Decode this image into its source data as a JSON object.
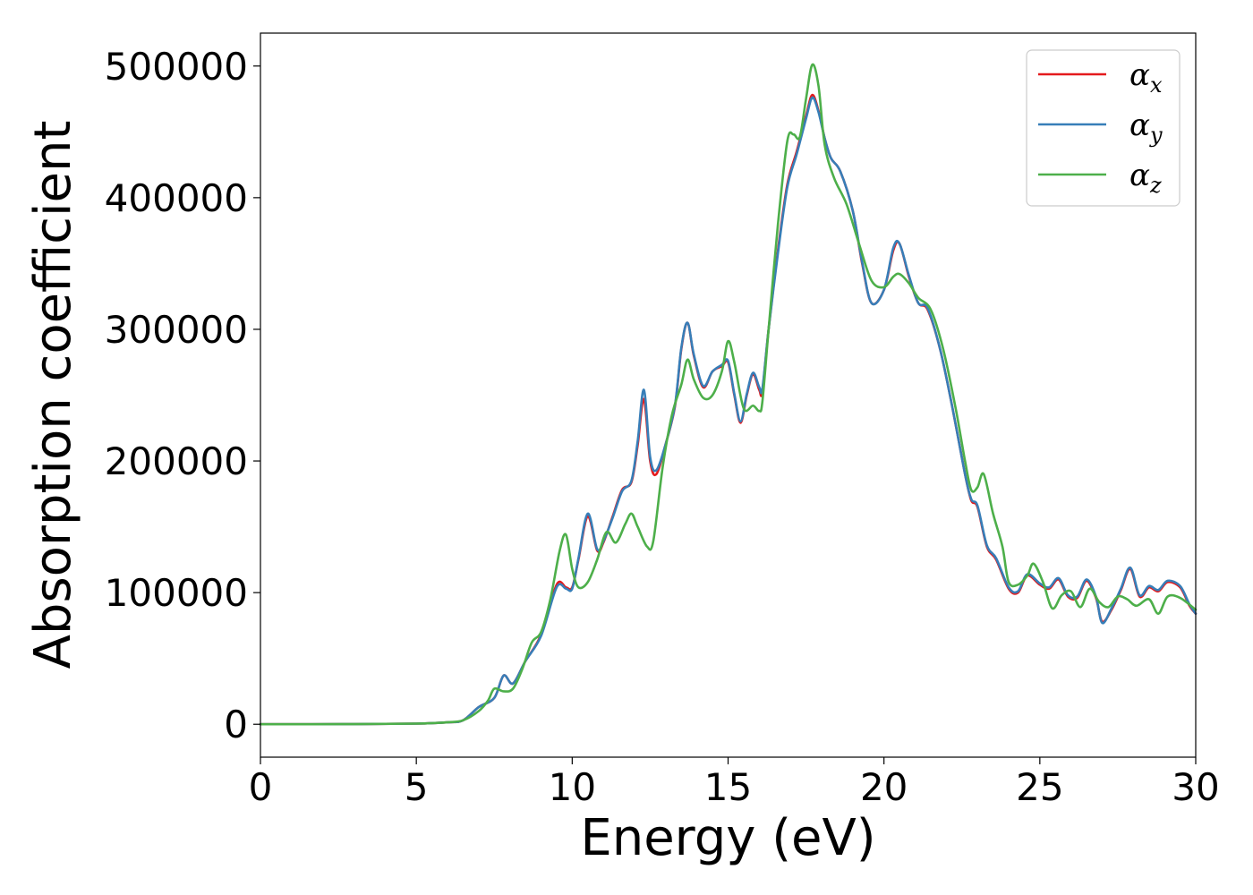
{
  "chart_data": {
    "type": "line",
    "title": "",
    "xlabel": "Energy (eV)",
    "ylabel": "Absorption coefficient",
    "xlim": [
      0,
      30
    ],
    "ylim": [
      -25000,
      525000
    ],
    "xticks": [
      0,
      5,
      10,
      15,
      20,
      25,
      30
    ],
    "yticks": [
      0,
      100000,
      200000,
      300000,
      400000,
      500000
    ],
    "grid": false,
    "legend_position": "top-right",
    "series": [
      {
        "name": "αx",
        "legend_symbol": "α",
        "legend_subscript": "x",
        "color": "#e41a1c",
        "x": [
          0,
          3,
          5,
          6,
          6.5,
          7,
          7.5,
          7.8,
          8.1,
          8.5,
          9,
          9.5,
          9.8,
          10,
          10.2,
          10.5,
          10.8,
          11,
          11.3,
          11.6,
          11.9,
          12.1,
          12.3,
          12.5,
          12.7,
          13,
          13.3,
          13.5,
          13.7,
          13.9,
          14.2,
          14.5,
          14.8,
          15,
          15.2,
          15.4,
          15.6,
          15.8,
          16,
          16.1,
          16.3,
          16.6,
          16.9,
          17.2,
          17.5,
          17.7,
          17.9,
          18.1,
          18.3,
          18.6,
          19,
          19.3,
          19.6,
          20,
          20.3,
          20.5,
          20.8,
          21.1,
          21.4,
          21.8,
          22.2,
          22.6,
          22.8,
          23,
          23.3,
          23.6,
          24,
          24.3,
          24.6,
          25,
          25.3,
          25.6,
          25.9,
          26.2,
          26.5,
          26.8,
          27,
          27.3,
          27.6,
          27.9,
          28.2,
          28.5,
          28.8,
          29.1,
          29.5,
          29.8,
          30
        ],
        "y": [
          0,
          100,
          500,
          1500,
          3000,
          13000,
          20000,
          37000,
          31000,
          48000,
          68000,
          106000,
          104000,
          104000,
          125000,
          158000,
          132000,
          138000,
          158000,
          178000,
          184000,
          212000,
          247000,
          200000,
          190000,
          213000,
          242000,
          285000,
          305000,
          280000,
          256000,
          268000,
          272000,
          275000,
          250000,
          229000,
          250000,
          266000,
          254000,
          253000,
          300000,
          360000,
          410000,
          435000,
          462000,
          478000,
          466000,
          445000,
          430000,
          420000,
          390000,
          350000,
          320000,
          330000,
          360000,
          365000,
          340000,
          320000,
          315000,
          285000,
          240000,
          190000,
          170000,
          165000,
          135000,
          125000,
          103000,
          100000,
          113000,
          106000,
          103000,
          110000,
          97000,
          96000,
          109000,
          96000,
          78000,
          87000,
          102000,
          118000,
          97000,
          104000,
          101000,
          108000,
          104000,
          90000,
          84000
        ]
      },
      {
        "name": "αy",
        "legend_symbol": "α",
        "legend_subscript": "y",
        "color": "#377eb8",
        "x": [
          0,
          3,
          5,
          6,
          6.5,
          7,
          7.5,
          7.8,
          8.1,
          8.5,
          9,
          9.5,
          9.8,
          10,
          10.2,
          10.5,
          10.8,
          11,
          11.3,
          11.6,
          11.9,
          12.1,
          12.3,
          12.5,
          12.7,
          13,
          13.3,
          13.5,
          13.7,
          13.9,
          14.2,
          14.5,
          14.8,
          15,
          15.2,
          15.4,
          15.6,
          15.8,
          16,
          16.1,
          16.3,
          16.6,
          16.9,
          17.2,
          17.5,
          17.7,
          17.9,
          18.1,
          18.3,
          18.6,
          19,
          19.3,
          19.6,
          20,
          20.3,
          20.5,
          20.8,
          21.1,
          21.4,
          21.8,
          22.2,
          22.6,
          22.8,
          23,
          23.3,
          23.6,
          24,
          24.3,
          24.6,
          25,
          25.3,
          25.6,
          25.9,
          26.2,
          26.5,
          26.8,
          27,
          27.3,
          27.6,
          27.9,
          28.2,
          28.5,
          28.8,
          29.1,
          29.5,
          29.8,
          30
        ],
        "y": [
          0,
          100,
          500,
          1500,
          3000,
          13000,
          20000,
          37000,
          31000,
          48000,
          67000,
          104000,
          103000,
          103000,
          126000,
          160000,
          133000,
          139000,
          157000,
          177000,
          185000,
          215000,
          254000,
          203000,
          193000,
          213000,
          243000,
          286000,
          305000,
          281000,
          257000,
          268000,
          273000,
          276000,
          251000,
          230000,
          251000,
          267000,
          256000,
          255000,
          300000,
          358000,
          408000,
          433000,
          460000,
          476000,
          465000,
          445000,
          430000,
          420000,
          390000,
          351000,
          320000,
          330000,
          362000,
          365000,
          341000,
          320000,
          316000,
          285000,
          240000,
          190000,
          171000,
          166000,
          136000,
          126000,
          104000,
          101000,
          114000,
          107000,
          104000,
          111000,
          98000,
          97000,
          110000,
          97000,
          77000,
          88000,
          103000,
          119000,
          98000,
          105000,
          102000,
          109000,
          105000,
          91000,
          84000
        ]
      },
      {
        "name": "αz",
        "legend_symbol": "α",
        "legend_subscript": "z",
        "color": "#4daf4a",
        "x": [
          0,
          3,
          5,
          6,
          6.5,
          7,
          7.3,
          7.5,
          7.8,
          8.1,
          8.4,
          8.7,
          9,
          9.3,
          9.6,
          9.8,
          10,
          10.2,
          10.5,
          10.8,
          11.1,
          11.4,
          11.7,
          11.9,
          12.1,
          12.4,
          12.6,
          12.9,
          13.2,
          13.5,
          13.7,
          13.9,
          14.2,
          14.5,
          14.8,
          15,
          15.2,
          15.5,
          15.8,
          16,
          16.1,
          16.3,
          16.6,
          16.9,
          17.1,
          17.3,
          17.5,
          17.7,
          17.9,
          18.1,
          18.4,
          18.8,
          19.2,
          19.6,
          20,
          20.3,
          20.5,
          20.8,
          21.1,
          21.5,
          21.9,
          22.3,
          22.6,
          22.8,
          23,
          23.2,
          23.5,
          23.8,
          24,
          24.3,
          24.6,
          24.8,
          25.1,
          25.4,
          25.7,
          26,
          26.3,
          26.6,
          26.9,
          27.2,
          27.5,
          27.8,
          28.1,
          28.5,
          28.8,
          29.1,
          29.5,
          30
        ],
        "y": [
          0,
          100,
          500,
          1500,
          3000,
          10000,
          18000,
          27000,
          25000,
          27000,
          42000,
          62000,
          70000,
          95000,
          132000,
          144000,
          118000,
          104000,
          108000,
          125000,
          146000,
          138000,
          152000,
          160000,
          150000,
          135000,
          139000,
          195000,
          235000,
          258000,
          277000,
          262000,
          248000,
          250000,
          268000,
          291000,
          275000,
          240000,
          242000,
          238000,
          245000,
          300000,
          380000,
          443000,
          448000,
          446000,
          475000,
          501000,
          485000,
          440000,
          415000,
          395000,
          365000,
          337000,
          332000,
          340000,
          342000,
          335000,
          324000,
          315000,
          285000,
          240000,
          200000,
          178000,
          180000,
          190000,
          160000,
          135000,
          108000,
          106000,
          113000,
          122000,
          108000,
          88000,
          98000,
          101000,
          89000,
          103000,
          93000,
          89000,
          97000,
          95000,
          90000,
          95000,
          84000,
          97000,
          96000,
          87000
        ]
      }
    ]
  }
}
